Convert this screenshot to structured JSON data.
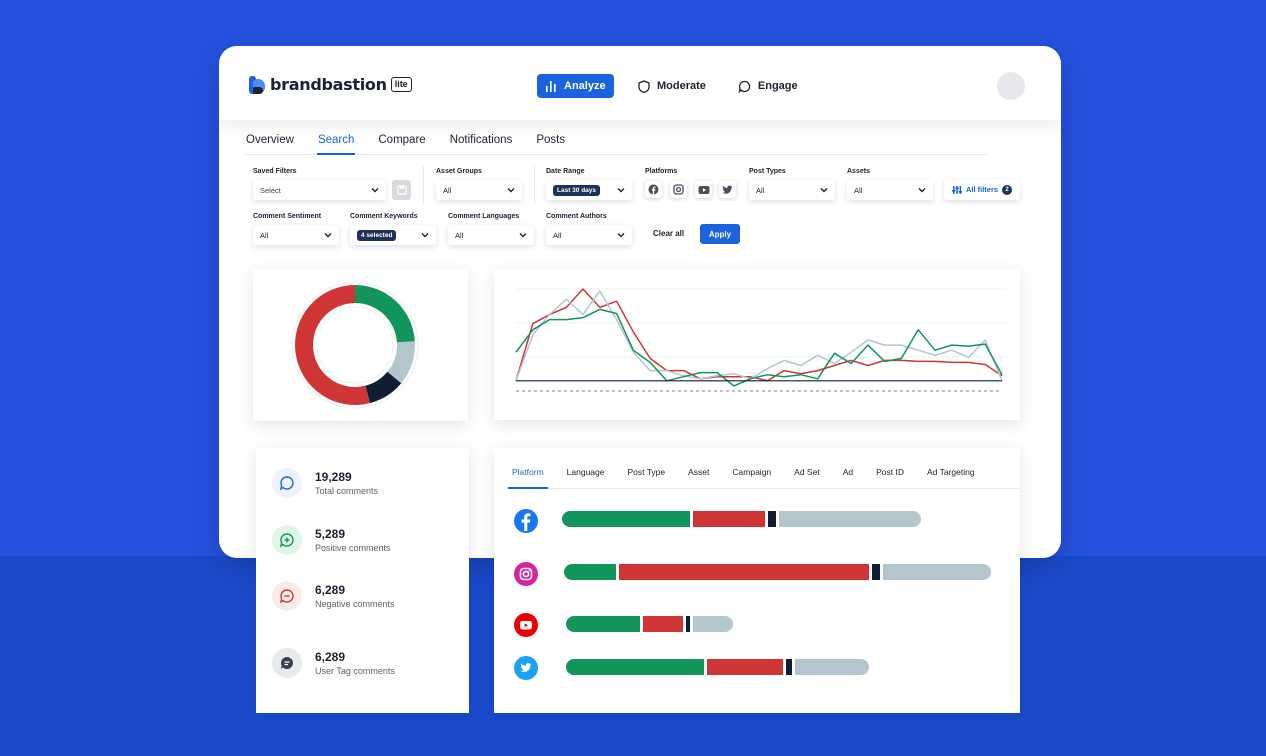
{
  "brand": {
    "name": "brandbastion",
    "badge": "lite"
  },
  "nav": {
    "analyze": "Analyze",
    "moderate": "Moderate",
    "engage": "Engage"
  },
  "tabs": [
    "Overview",
    "Search",
    "Compare",
    "Notifications",
    "Posts"
  ],
  "filters": {
    "saved_filters": {
      "label": "Saved Filters",
      "value": "Select"
    },
    "asset_groups": {
      "label": "Asset Groups",
      "value": "All"
    },
    "date_range": {
      "label": "Date Range",
      "value": "Last 30 days"
    },
    "platforms": {
      "label": "Platforms",
      "icons": [
        "facebook-icon",
        "instagram-icon",
        "youtube-icon",
        "twitter-icon"
      ]
    },
    "post_types": {
      "label": "Post Types",
      "value": "All"
    },
    "assets": {
      "label": "Assets",
      "value": "All"
    },
    "all_filters": {
      "label": "All filters",
      "count": "2"
    },
    "comment_sentiment": {
      "label": "Comment Sentiment",
      "value": "All"
    },
    "comment_keywords": {
      "label": "Comment Keywords",
      "value": "4 selected"
    },
    "comment_languages": {
      "label": "Comment Languages",
      "value": "All"
    },
    "comment_authors": {
      "label": "Comment Authors",
      "value": "All"
    },
    "clear_all": "Clear all",
    "apply": "Apply"
  },
  "colors": {
    "positive": "#11955a",
    "negative": "#d03535",
    "neutral": "#b3c6ce",
    "user_tag": "#0f1e35",
    "accent": "#1b63dc"
  },
  "donut": {
    "segments": [
      {
        "name": "positive",
        "share": 0.24
      },
      {
        "name": "neutral",
        "share": 0.12
      },
      {
        "name": "user_tag",
        "share": 0.1
      },
      {
        "name": "negative",
        "share": 0.54
      }
    ]
  },
  "line_chart": {
    "x": [
      1,
      2,
      3,
      4,
      5,
      6,
      7,
      8,
      9,
      10,
      11,
      12,
      13,
      14,
      15,
      16,
      17,
      18,
      19,
      20,
      21,
      22,
      23,
      24,
      25,
      26,
      27,
      28,
      29,
      30
    ],
    "series": [
      {
        "color_key": "negative",
        "values": [
          10,
          66,
          75,
          82,
          100,
          82,
          88,
          58,
          32,
          20,
          20,
          12,
          14,
          14,
          14,
          10,
          20,
          17,
          20,
          25,
          30,
          25,
          30,
          30,
          29,
          29,
          28,
          28,
          26,
          15
        ]
      },
      {
        "color_key": "neutral",
        "values": [
          10,
          55,
          75,
          90,
          75,
          98,
          70,
          38,
          20,
          20,
          15,
          12,
          15,
          17,
          12,
          22,
          30,
          25,
          35,
          27,
          38,
          50,
          45,
          45,
          40,
          35,
          40,
          33,
          50,
          10
        ]
      },
      {
        "color_key": "positive",
        "values": [
          38,
          60,
          70,
          70,
          72,
          80,
          76,
          40,
          28,
          10,
          14,
          18,
          18,
          5,
          12,
          16,
          14,
          16,
          12,
          37,
          27,
          45,
          29,
          32,
          60,
          40,
          45,
          44,
          46,
          16
        ]
      },
      {
        "color_key": "user_tag",
        "values": [
          10,
          10,
          10,
          10,
          10,
          10,
          10,
          10,
          10,
          10,
          10,
          10,
          10,
          10,
          10,
          10,
          10,
          10,
          10,
          10,
          10,
          10,
          10,
          10,
          10,
          10,
          10,
          10,
          10,
          10
        ]
      }
    ]
  },
  "stats": [
    {
      "value": "19,289",
      "label": "Total comments",
      "icon": "chat-bubble-icon"
    },
    {
      "value": "5,289",
      "label": "Positive comments",
      "icon": "positive-comment-icon"
    },
    {
      "value": "6,289",
      "label": "Negative comments",
      "icon": "negative-comment-icon"
    },
    {
      "value": "6,289",
      "label": "User Tag comments",
      "icon": "user-tag-comment-icon"
    }
  ],
  "breakdown_tabs": [
    "Platform",
    "Language",
    "Post Type",
    "Asset",
    "Campaign",
    "Ad Set",
    "Ad",
    "Post ID",
    "Ad Targeting"
  ],
  "platform_breakdown": [
    {
      "platform": "facebook-icon",
      "positive": 128,
      "negative": 72,
      "user_tag": 8,
      "neutral": 142
    },
    {
      "platform": "instagram-icon",
      "positive": 52,
      "negative": 250,
      "user_tag": 8,
      "neutral": 108
    },
    {
      "platform": "youtube-icon",
      "positive": 74,
      "negative": 40,
      "user_tag": 4,
      "neutral": 40
    },
    {
      "platform": "twitter-icon",
      "positive": 138,
      "negative": 76,
      "user_tag": 6,
      "neutral": 74
    }
  ]
}
